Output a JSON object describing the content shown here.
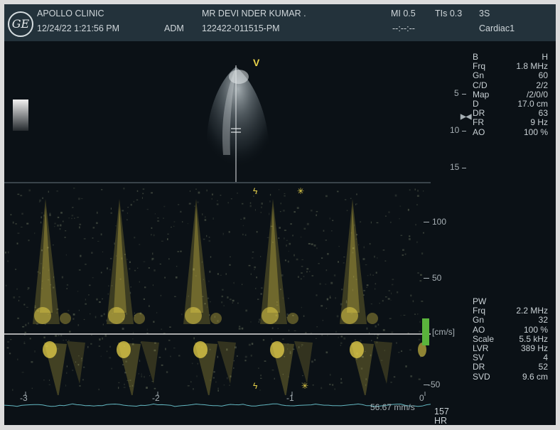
{
  "header": {
    "logo": "GE",
    "clinic": "APOLLO CLINIC",
    "datetime": "12/24/22 1:21:56 PM",
    "operator": "ADM",
    "patient_name": "MR DEVI NDER KUMAR .",
    "patient_id": "122422-011515-PM",
    "mi": "MI 0.5",
    "tis": "TIs 0.3",
    "probe": "3S",
    "time_placeholder": "--:--:--",
    "preset": "Cardiac1"
  },
  "bmode": {
    "orientation_marker": "V",
    "depth_ticks": [
      "5",
      "10",
      "15"
    ],
    "params": [
      {
        "k": "B",
        "v": "H"
      },
      {
        "k": "Frq",
        "v": "1.8 MHz"
      },
      {
        "k": "Gn",
        "v": "60"
      },
      {
        "k": "C/D",
        "v": "2/2"
      },
      {
        "k": "Map",
        "v": "/2/0/0"
      },
      {
        "k": "D",
        "v": "17.0 cm"
      },
      {
        "k": "DR",
        "v": "63"
      },
      {
        "k": "FR",
        "v": "9 Hz"
      },
      {
        "k": "AO",
        "v": "100 %"
      }
    ]
  },
  "doppler": {
    "mode": "PW",
    "unit": "[cm/s]",
    "scale_labels": [
      "100",
      "50",
      "-50"
    ],
    "time_axis": [
      "-3",
      "-2",
      "-1",
      "0"
    ],
    "sweep": "56.67 mm/s",
    "params": [
      {
        "k": "Frq",
        "v": "2.2 MHz"
      },
      {
        "k": "Gn",
        "v": "32"
      },
      {
        "k": "AO",
        "v": "100 %"
      },
      {
        "k": "Scale",
        "v": "5.5 kHz"
      },
      {
        "k": "LVR",
        "v": "389 Hz"
      },
      {
        "k": "SV",
        "v": "4"
      },
      {
        "k": "DR",
        "v": "52"
      },
      {
        "k": "SVD",
        "v": "9.6 cm"
      }
    ],
    "heart_rate": "157",
    "heart_rate_label": "HR"
  },
  "colors": {
    "accent": "#e8d24a",
    "baseline": "#dcdcdc",
    "ecg": "#63b7c1",
    "gain_marker": "#5ab43c",
    "text": "#cfd6da"
  }
}
